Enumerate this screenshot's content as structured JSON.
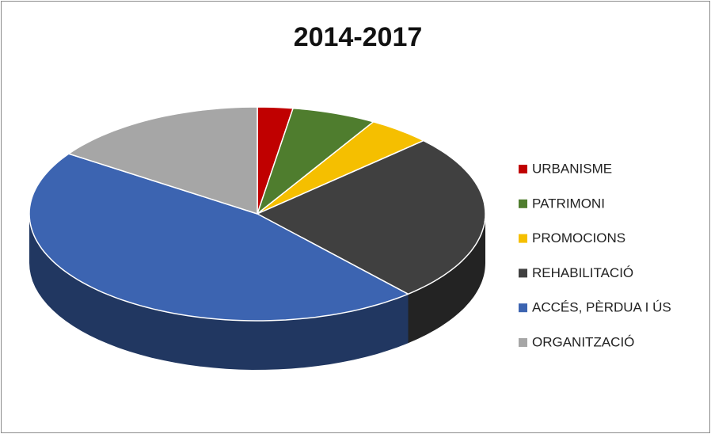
{
  "chart_data": {
    "type": "pie3d",
    "title": "2014-2017",
    "categories": [
      "URBANISME",
      "PATRIMONI",
      "PROMOCIONS",
      "REHABILITACIÓ",
      "ACCÉS, PÈRDUA I ÚS",
      "ORGANITZACIÓ"
    ],
    "values": [
      2.5,
      6,
      4.5,
      25.5,
      46,
      15.5
    ],
    "colors": [
      "#c00000",
      "#4f7d2e",
      "#f5bf00",
      "#404040",
      "#3c64b1",
      "#a6a6a6"
    ],
    "legend": "right"
  }
}
